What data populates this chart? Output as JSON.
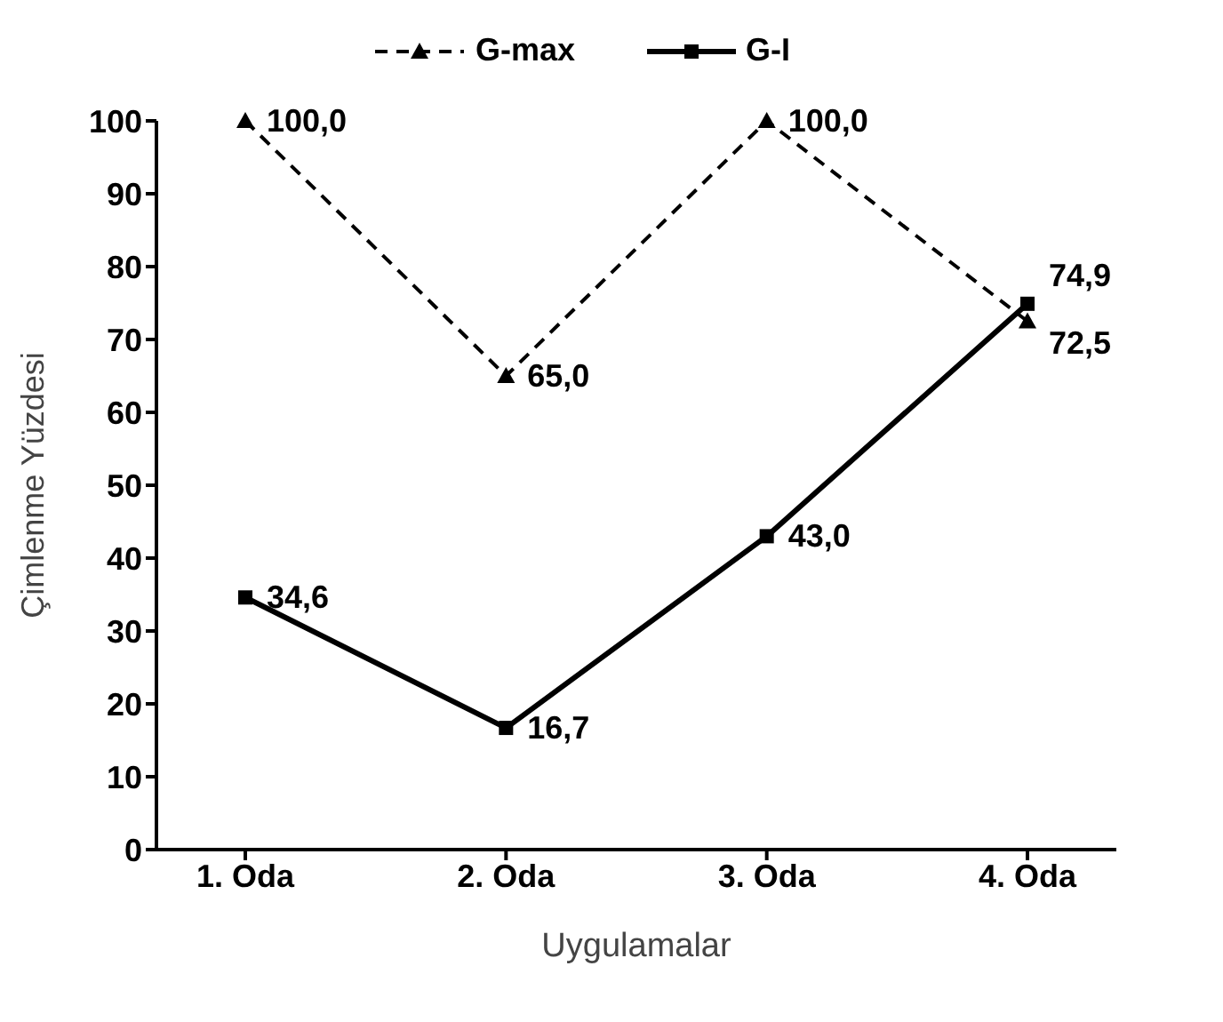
{
  "chart_data": {
    "type": "line",
    "xlabel": "Uygulamalar",
    "ylabel": "Çimlenme Yüzdesi",
    "categories": [
      "1. Oda",
      "2. Oda",
      "3. Oda",
      "4. Oda"
    ],
    "series": [
      {
        "name": "G-max",
        "color": "#000000",
        "values": [
          100,
          65,
          100,
          72.5
        ],
        "marker": "triangle",
        "line_style": "dashed",
        "value_labels": [
          "100,0",
          "65,0",
          "100,0",
          "72,5"
        ]
      },
      {
        "name": "G-I",
        "color": "#000000",
        "values": [
          34.6,
          16.7,
          43,
          74.9
        ],
        "marker": "square",
        "line_style": "solid",
        "value_labels": [
          "34,6",
          "16,7",
          "43,0",
          "74,9"
        ]
      }
    ],
    "ylim": [
      0,
      100
    ],
    "yticks": [
      0,
      10,
      20,
      30,
      40,
      50,
      60,
      70,
      80,
      90,
      100
    ],
    "grid": false,
    "legend": "top"
  }
}
